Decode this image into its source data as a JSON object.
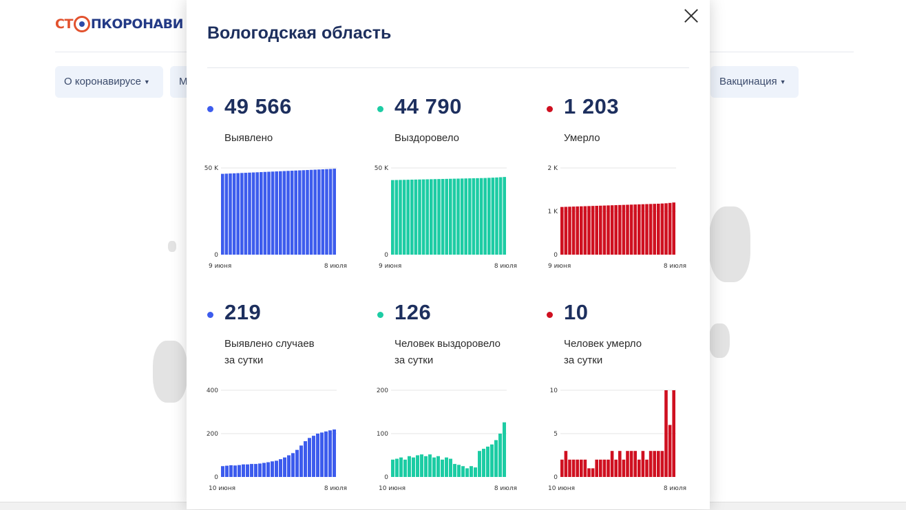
{
  "site": {
    "logo_part1": "СТ",
    "logo_part2": "ПКОРОНАВИ",
    "nav": [
      {
        "label": "О коронавирусе"
      },
      {
        "label": "М"
      },
      {
        "label": "Вакцинация"
      }
    ]
  },
  "modal": {
    "title": "Вологодская область",
    "colors": {
      "blue": "#3d5ced",
      "green": "#1dcca4",
      "red": "#cf1020"
    },
    "stats": [
      {
        "value": "49 566",
        "label_line1": "Выявлено",
        "label_line2": "",
        "color": "blue",
        "chart_data": {
          "type": "bar",
          "y_ticks": [
            "50 K",
            "0"
          ],
          "ylim": [
            0,
            50000
          ],
          "x_start": "9 июня",
          "x_end": "8 июля",
          "values": [
            46600,
            46700,
            46800,
            46900,
            47000,
            47100,
            47200,
            47300,
            47400,
            47500,
            47600,
            47700,
            47800,
            47900,
            48000,
            48100,
            48200,
            48300,
            48400,
            48500,
            48600,
            48700,
            48800,
            48900,
            49000,
            49100,
            49200,
            49300,
            49400,
            49566
          ]
        }
      },
      {
        "value": "44 790",
        "label_line1": "Выздоровело",
        "label_line2": "",
        "color": "green",
        "chart_data": {
          "type": "bar",
          "y_ticks": [
            "50 K",
            "0"
          ],
          "ylim": [
            0,
            50000
          ],
          "x_start": "9 июня",
          "x_end": "8 июля",
          "values": [
            43000,
            43050,
            43100,
            43150,
            43200,
            43250,
            43300,
            43350,
            43400,
            43450,
            43500,
            43550,
            43600,
            43650,
            43700,
            43750,
            43800,
            43850,
            43900,
            43950,
            44000,
            44050,
            44100,
            44150,
            44200,
            44300,
            44400,
            44500,
            44650,
            44790
          ]
        }
      },
      {
        "value": "1 203",
        "label_line1": "Умерло",
        "label_line2": "",
        "color": "red",
        "chart_data": {
          "type": "bar",
          "y_ticks": [
            "2 K",
            "1 K",
            "0"
          ],
          "ylim": [
            0,
            2000
          ],
          "x_start": "9 июня",
          "x_end": "8 июля",
          "values": [
            1100,
            1103,
            1106,
            1109,
            1112,
            1115,
            1118,
            1121,
            1124,
            1127,
            1130,
            1133,
            1136,
            1139,
            1142,
            1145,
            1148,
            1151,
            1154,
            1157,
            1160,
            1163,
            1166,
            1169,
            1172,
            1175,
            1180,
            1185,
            1193,
            1203
          ]
        }
      },
      {
        "value": "219",
        "label_line1": "Выявлено случаев",
        "label_line2": "за сутки",
        "color": "blue",
        "chart_data": {
          "type": "bar",
          "y_ticks": [
            "400",
            "200",
            "0"
          ],
          "ylim": [
            0,
            400
          ],
          "x_start": "10 июня",
          "x_end": "8 июля",
          "values": [
            50,
            52,
            54,
            53,
            55,
            58,
            58,
            60,
            60,
            62,
            65,
            68,
            72,
            75,
            82,
            90,
            100,
            110,
            125,
            145,
            165,
            180,
            190,
            200,
            205,
            210,
            215,
            219
          ]
        }
      },
      {
        "value": "126",
        "label_line1": "Человек выздоровело",
        "label_line2": "за сутки",
        "color": "green",
        "chart_data": {
          "type": "bar",
          "y_ticks": [
            "200",
            "100",
            "0"
          ],
          "ylim": [
            0,
            200
          ],
          "x_start": "10 июня",
          "x_end": "8 июля",
          "values": [
            40,
            42,
            45,
            40,
            48,
            45,
            50,
            52,
            48,
            52,
            45,
            48,
            40,
            45,
            42,
            30,
            28,
            25,
            20,
            25,
            22,
            60,
            65,
            70,
            75,
            85,
            100,
            126
          ]
        }
      },
      {
        "value": "10",
        "label_line1": "Человек умерло",
        "label_line2": "за сутки",
        "color": "red",
        "chart_data": {
          "type": "bar",
          "y_ticks": [
            "10",
            "5",
            "0"
          ],
          "ylim": [
            0,
            10
          ],
          "x_start": "10 июня",
          "x_end": "8 июля",
          "values": [
            2,
            3,
            2,
            2,
            2,
            2,
            2,
            1,
            1,
            2,
            2,
            2,
            2,
            3,
            2,
            3,
            2,
            3,
            3,
            3,
            2,
            3,
            2,
            3,
            3,
            3,
            3,
            10,
            6,
            10
          ]
        }
      }
    ]
  }
}
